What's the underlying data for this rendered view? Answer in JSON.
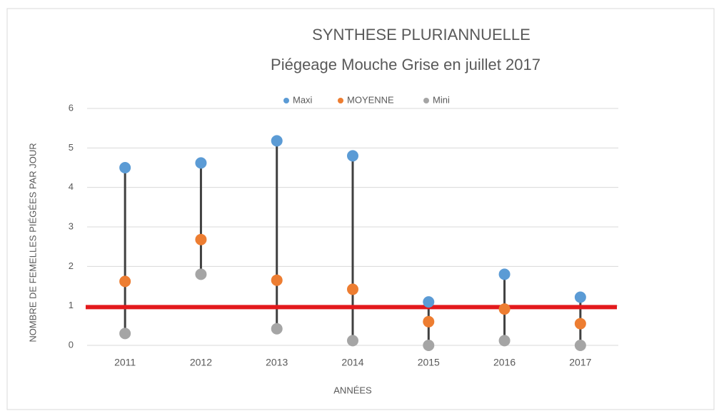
{
  "chart_data": {
    "type": "dot-range",
    "title": "SYNTHESE PLURIANNUELLE",
    "subtitle": "Piégeage Mouche Grise en juillet 2017",
    "x_label": "ANNÉES",
    "y_label": "NOMBRE DE FEMELLES PIÉGÉES PAR JOUR",
    "categories": [
      "2011",
      "2012",
      "2013",
      "2014",
      "2015",
      "2016",
      "2017"
    ],
    "series": [
      {
        "name": "Maxi",
        "color": "#5b9bd5",
        "values": [
          4.5,
          4.62,
          5.18,
          4.8,
          1.1,
          1.8,
          1.22
        ]
      },
      {
        "name": "MOYENNE",
        "color": "#ed7d31",
        "values": [
          1.62,
          2.68,
          1.65,
          1.42,
          0.6,
          0.92,
          0.55
        ]
      },
      {
        "name": "Mini",
        "color": "#a5a5a5",
        "values": [
          0.3,
          1.8,
          0.42,
          0.12,
          0,
          0.12,
          0
        ]
      }
    ],
    "range_color": "#404040",
    "reference_line": {
      "value": 0.97,
      "color": "#e3191c"
    },
    "ylim": [
      0,
      6
    ],
    "yticks": [
      0,
      1,
      2,
      3,
      4,
      5,
      6
    ],
    "grid": true,
    "legend": "top"
  }
}
